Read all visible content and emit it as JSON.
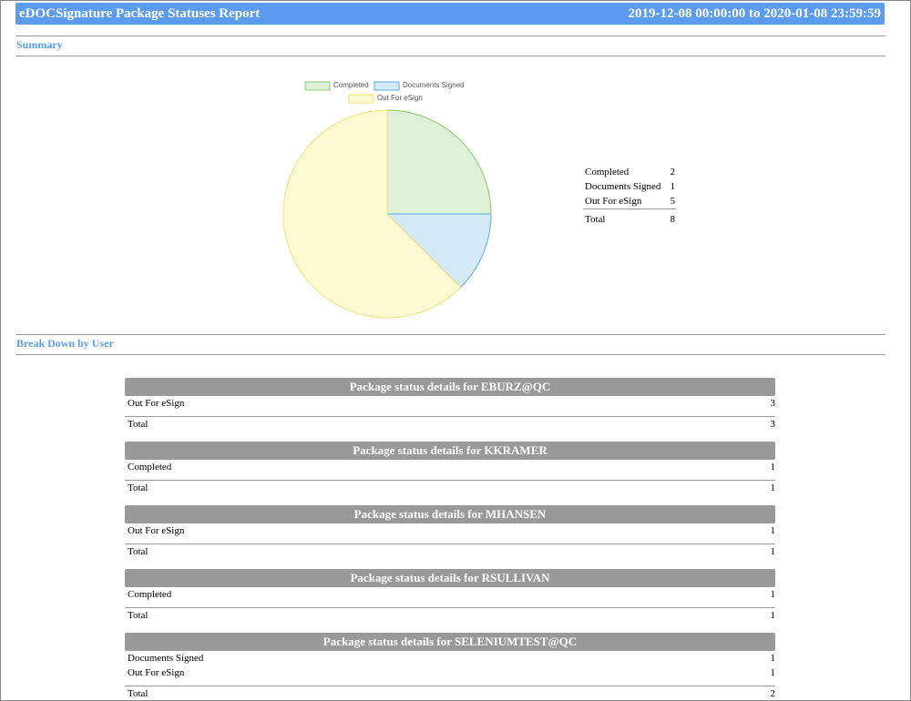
{
  "header": {
    "title": "eDOCSignature Package Statuses Report",
    "range": "2019-12-08 00:00:00 to 2020-01-08 23:59:59"
  },
  "summary": {
    "heading": "Summary",
    "total_label": "Total",
    "total": 8
  },
  "chart_data": {
    "type": "pie",
    "categories": [
      "Completed",
      "Documents Signed",
      "Out For eSign"
    ],
    "values": [
      2,
      1,
      5
    ],
    "colors": [
      "#dff0d8",
      "#d4eaf6",
      "#fdf9d2"
    ],
    "stroke_colors": [
      "#8cc96b",
      "#5aaee2",
      "#f2e27a"
    ],
    "legend": "top"
  },
  "breakdown": {
    "heading": "Break Down by User",
    "sections": [
      {
        "title": "Package status details for EBURZ@QC",
        "rows": [
          [
            "Out For eSign",
            3
          ]
        ],
        "total_label": "Total",
        "total": 3
      },
      {
        "title": "Package status details for KKRAMER",
        "rows": [
          [
            "Completed",
            1
          ]
        ],
        "total_label": "Total",
        "total": 1
      },
      {
        "title": "Package status details for MHANSEN",
        "rows": [
          [
            "Out For eSign",
            1
          ]
        ],
        "total_label": "Total",
        "total": 1
      },
      {
        "title": "Package status details for RSULLIVAN",
        "rows": [
          [
            "Completed",
            1
          ]
        ],
        "total_label": "Total",
        "total": 1
      },
      {
        "title": "Package status details for SELENIUMTEST@QC",
        "rows": [
          [
            "Documents Signed",
            1
          ],
          [
            "Out For eSign",
            1
          ]
        ],
        "total_label": "Total",
        "total": 2
      }
    ]
  }
}
